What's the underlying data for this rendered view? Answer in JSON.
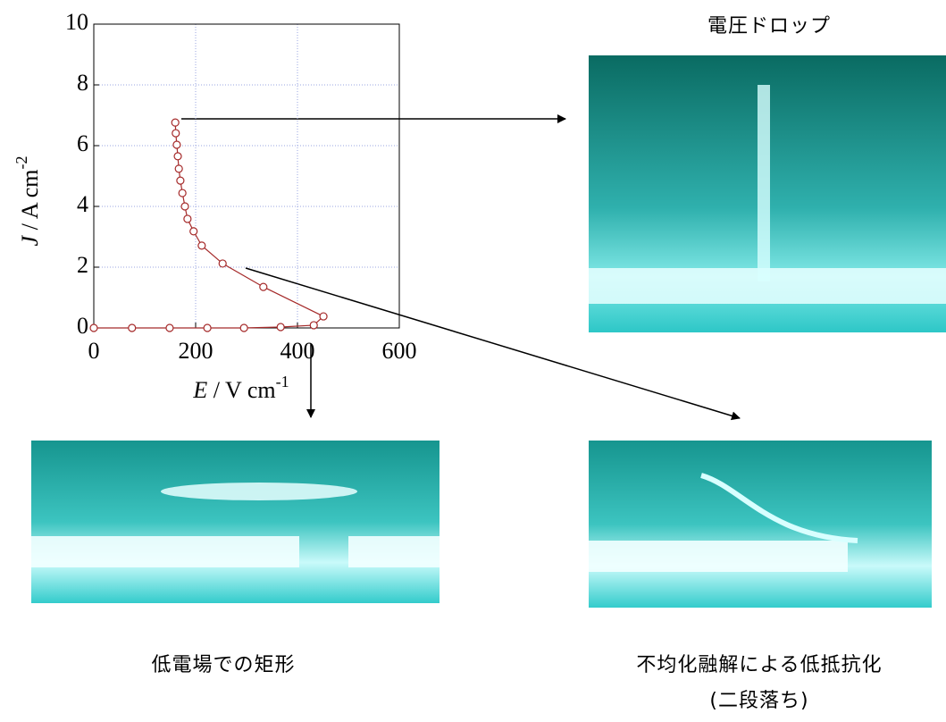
{
  "chart_data": {
    "type": "line",
    "xlabel": {
      "var": "E",
      "unit": " / V cm",
      "exp": "-1"
    },
    "ylabel": {
      "var": "J",
      "unit": " / A cm",
      "exp": "-2"
    },
    "x": [
      0,
      75,
      149,
      223,
      295,
      367,
      432,
      451,
      333,
      253,
      212,
      196,
      184,
      179,
      174,
      170,
      167,
      165,
      163,
      161,
      160
    ],
    "series": [
      {
        "color": "#a52a2a",
        "values": [
          0,
          0,
          0,
          0,
          0,
          0.03,
          0.09,
          0.38,
          1.35,
          2.12,
          2.71,
          3.18,
          3.59,
          4.0,
          4.44,
          4.85,
          5.24,
          5.65,
          6.03,
          6.41,
          6.76
        ]
      }
    ],
    "xlim": [
      0,
      600
    ],
    "ylim": [
      0,
      10
    ],
    "xticks": [
      0,
      200,
      400,
      600
    ],
    "yticks": [
      0,
      2,
      4,
      6,
      8,
      10
    ],
    "grid": true
  },
  "captions": [
    "電圧ドロップ",
    "低電場での矩形",
    "不均化融解による低抵抗化",
    "(二段落ち)"
  ]
}
